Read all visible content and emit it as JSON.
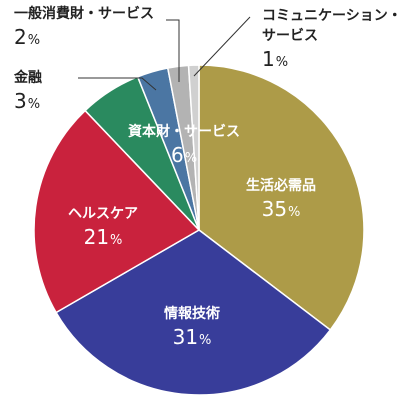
{
  "chart_data": {
    "type": "pie",
    "title": "",
    "value_suffix": "%",
    "slices": [
      {
        "label": "生活必需品",
        "value": 35,
        "color": "#ad9b48",
        "label_placement": "inside",
        "text_color": "#ffffff"
      },
      {
        "label": "情報技術",
        "value": 31,
        "color": "#383d9a",
        "label_placement": "inside",
        "text_color": "#ffffff"
      },
      {
        "label": "ヘルスケア",
        "value": 21,
        "color": "#c9223d",
        "label_placement": "inside",
        "text_color": "#ffffff"
      },
      {
        "label": "資本財・サービス",
        "value": 6,
        "color": "#2a8a5f",
        "label_placement": "inside",
        "text_color": "#ffffff"
      },
      {
        "label": "金融",
        "value": 3,
        "color": "#4b76a3",
        "label_placement": "outside",
        "text_color": "#222222"
      },
      {
        "label": "一般消費財・サービス",
        "value": 2,
        "color": "#b3b3b3",
        "label_placement": "outside",
        "text_color": "#222222"
      },
      {
        "label": "コミュニケーション・サービス",
        "value": 1,
        "color": "#d0d0d0",
        "label_placement": "outside",
        "text_color": "#222222"
      }
    ]
  }
}
